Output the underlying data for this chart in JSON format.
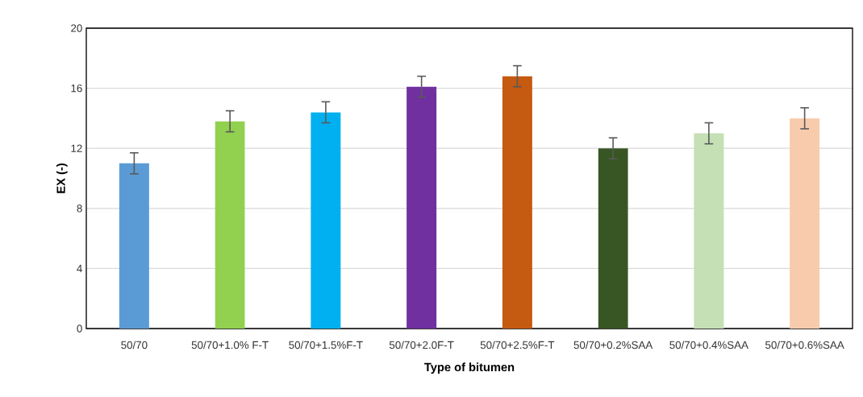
{
  "chart_data": {
    "type": "bar",
    "xlabel": "Type of bitumen",
    "ylabel": "EX (-)",
    "categories": [
      "50/70",
      "50/70+1.0% F-T",
      "50/70+1.5%F-T",
      "50/70+2.0F-T",
      "50/70+2.5%F-T",
      "50/70+0.2%SAA",
      "50/70+0.4%SAA",
      "50/70+0.6%SAA"
    ],
    "values": [
      11.0,
      13.8,
      14.4,
      16.1,
      16.8,
      12.0,
      13.0,
      14.0
    ],
    "errors": [
      0.7,
      0.7,
      0.7,
      0.7,
      0.7,
      0.7,
      0.7,
      0.7
    ],
    "colors": [
      "#5b9bd5",
      "#92d050",
      "#00b0f0",
      "#7030a0",
      "#c55a11",
      "#375623",
      "#c5e0b4",
      "#f8cbad"
    ],
    "ylim": [
      0,
      20
    ],
    "yticks": [
      0,
      4,
      8,
      12,
      16,
      20
    ],
    "grid": "y"
  }
}
